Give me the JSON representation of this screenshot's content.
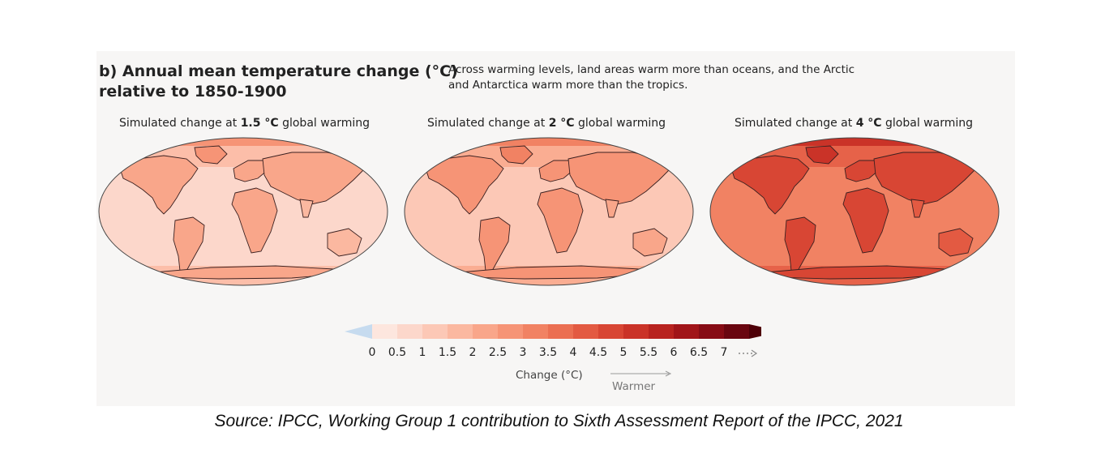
{
  "figure": {
    "title_line1": "b) Annual mean temperature change (°C)",
    "title_line2": "relative to 1850-1900",
    "subtitle_line1": "Across warming levels, land areas warm more than oceans, and the Arctic",
    "subtitle_line2": "and Antarctica warm more than the tropics."
  },
  "maps": [
    {
      "label_prefix": "Simulated change at ",
      "label_value": "1.5 °C",
      "label_suffix": " global warming",
      "base_level": 3
    },
    {
      "label_prefix": "Simulated change at ",
      "label_value": "2 °C",
      "label_suffix": " global warming",
      "base_level": 4
    },
    {
      "label_prefix": "Simulated change at ",
      "label_value": "4 °C",
      "label_suffix": " global warming",
      "base_level": 8
    }
  ],
  "legend": {
    "ticks": [
      "0",
      "0.5",
      "1",
      "1.5",
      "2",
      "2.5",
      "3",
      "3.5",
      "4",
      "4.5",
      "5",
      "5.5",
      "6",
      "6.5",
      "7"
    ],
    "label": "Change (°C)",
    "direction_label": "Warmer",
    "negative_color": "#c6dbef",
    "colors": [
      "#fde6de",
      "#fcd7cb",
      "#fcc8b6",
      "#fbb8a0",
      "#f9a68a",
      "#f69476",
      "#f18263",
      "#eb6f52",
      "#e35a42",
      "#d84634",
      "#ca3328",
      "#b8231f",
      "#a11519",
      "#870c15",
      "#6a0610"
    ]
  },
  "source": "Source: IPCC, Working Group 1 contribution to Sixth Assessment Report of the IPCC, 2021"
}
